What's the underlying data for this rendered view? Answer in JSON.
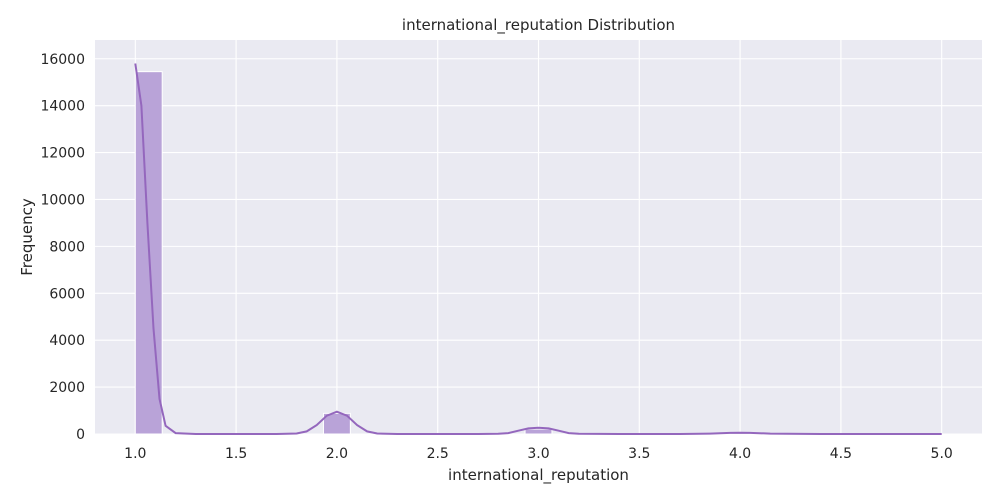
{
  "chart_data": {
    "type": "bar",
    "title": "international_reputation Distribution",
    "xlabel": "international_reputation",
    "ylabel": "Frequency",
    "xlim": [
      0.8,
      5.2
    ],
    "ylim": [
      0,
      16800
    ],
    "xticks": [
      "1.0",
      "1.5",
      "2.0",
      "2.5",
      "3.0",
      "3.5",
      "4.0",
      "4.5",
      "5.0"
    ],
    "xtick_values": [
      1.0,
      1.5,
      2.0,
      2.5,
      3.0,
      3.5,
      4.0,
      4.5,
      5.0
    ],
    "yticks": [
      "0",
      "2000",
      "4000",
      "6000",
      "8000",
      "10000",
      "12000",
      "14000",
      "16000"
    ],
    "ytick_values": [
      0,
      2000,
      4000,
      6000,
      8000,
      10000,
      12000,
      14000,
      16000
    ],
    "grid": true,
    "bins": [
      {
        "x0": 1.0,
        "x1": 1.1333,
        "count": 15450
      },
      {
        "x0": 1.9333,
        "x1": 2.0667,
        "count": 880
      },
      {
        "x0": 2.9333,
        "x1": 3.0667,
        "count": 210
      },
      {
        "x0": 3.9333,
        "x1": 4.0667,
        "count": 45
      },
      {
        "x0": 4.8667,
        "x1": 5.0,
        "count": 6
      }
    ],
    "kde": {
      "x": [
        1.0,
        1.03,
        1.06,
        1.09,
        1.12,
        1.15,
        1.2,
        1.3,
        1.5,
        1.7,
        1.8,
        1.85,
        1.9,
        1.95,
        2.0,
        2.05,
        2.1,
        2.15,
        2.2,
        2.3,
        2.5,
        2.7,
        2.8,
        2.85,
        2.9,
        2.95,
        3.0,
        3.05,
        3.1,
        3.15,
        3.2,
        3.4,
        3.7,
        3.85,
        3.95,
        4.0,
        4.05,
        4.15,
        4.4,
        4.8,
        5.0
      ],
      "y": [
        15800,
        14000,
        9000,
        4500,
        1500,
        350,
        40,
        0,
        0,
        0,
        20,
        110,
        380,
        780,
        950,
        780,
        380,
        110,
        20,
        0,
        0,
        0,
        10,
        40,
        140,
        240,
        270,
        240,
        140,
        40,
        10,
        0,
        0,
        15,
        45,
        55,
        45,
        15,
        0,
        0,
        0
      ]
    },
    "color": "#9467bd",
    "bar_fill": "#b9a3d8"
  }
}
